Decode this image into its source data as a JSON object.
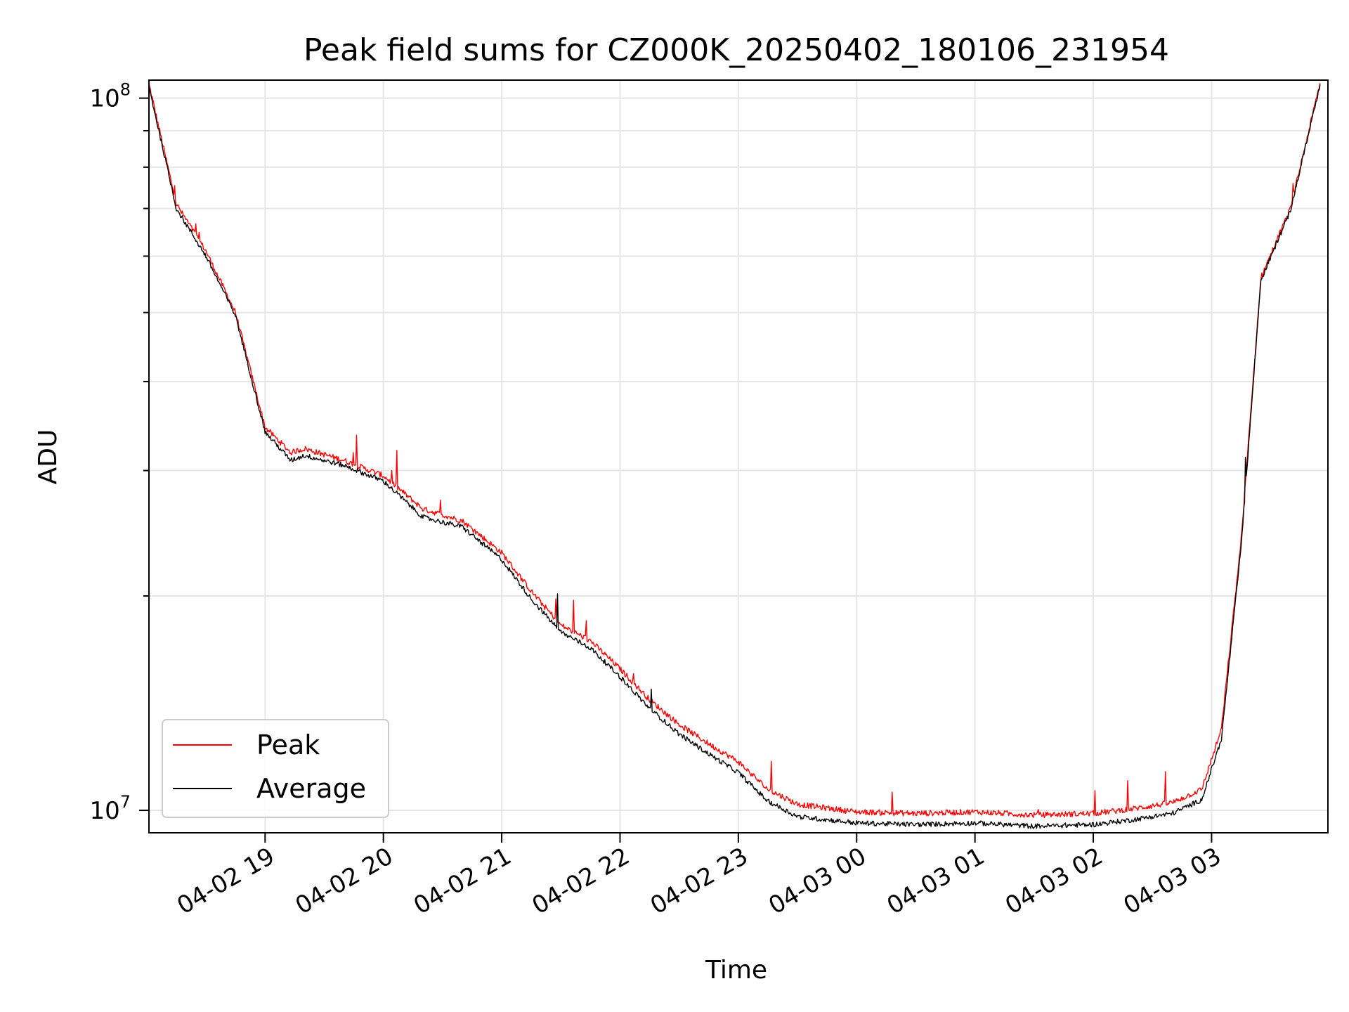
{
  "chart_data": {
    "type": "line",
    "title": "Peak field sums for CZ000K_20250402_180106_231954",
    "xlabel": "Time",
    "ylabel": "ADU",
    "x_range": [
      "2025-04-02 18:01:06",
      "2025-04-03 03:59:00"
    ],
    "ylim": [
      9300000,
      106000000
    ],
    "y_scale": "log",
    "grid": true,
    "legend_position": "lower-left",
    "x_ticks": [
      "04-02 19",
      "04-02 20",
      "04-02 21",
      "04-02 22",
      "04-02 23",
      "04-03 00",
      "04-03 01",
      "04-03 02",
      "04-03 03"
    ],
    "y_ticks": [
      {
        "base": "10",
        "exp": "7",
        "value": 10000000
      },
      {
        "base": "10",
        "exp": "8",
        "value": 100000000
      }
    ],
    "x": [
      "18:01",
      "18:15",
      "18:30",
      "18:45",
      "19:00",
      "19:13",
      "19:20",
      "19:40",
      "20:00",
      "20:20",
      "20:40",
      "21:00",
      "21:15",
      "21:30",
      "21:45",
      "22:00",
      "22:15",
      "22:30",
      "22:45",
      "23:00",
      "23:15",
      "23:30",
      "00:00",
      "00:30",
      "01:00",
      "01:30",
      "02:00",
      "02:20",
      "02:40",
      "02:55",
      "03:05",
      "03:15",
      "03:25",
      "03:40",
      "03:55"
    ],
    "series": [
      {
        "name": "Peak",
        "color": "#ff0000",
        "values": [
          105000000,
          71000000,
          61000000,
          50000000,
          34500000,
          31800000,
          32200000,
          31000000,
          29500000,
          26500000,
          25500000,
          23000000,
          20300000,
          18200000,
          17300000,
          15800000,
          14300000,
          13200000,
          12400000,
          11700000,
          10700000,
          10200000,
          9950000,
          9900000,
          9950000,
          9850000,
          9900000,
          10050000,
          10250000,
          10700000,
          13000000,
          24000000,
          56000000,
          70000000,
          105000000
        ]
      },
      {
        "name": "Average",
        "color": "#000000",
        "values": [
          104000000,
          70000000,
          60000000,
          49500000,
          34000000,
          31000000,
          31500000,
          30500000,
          29000000,
          25800000,
          25000000,
          22500000,
          19800000,
          17800000,
          16900000,
          15400000,
          13900000,
          12800000,
          12000000,
          11300000,
          10300000,
          9800000,
          9600000,
          9550000,
          9600000,
          9500000,
          9550000,
          9700000,
          9900000,
          10350000,
          12600000,
          23500000,
          55500000,
          69500000,
          104500000
        ]
      }
    ]
  }
}
